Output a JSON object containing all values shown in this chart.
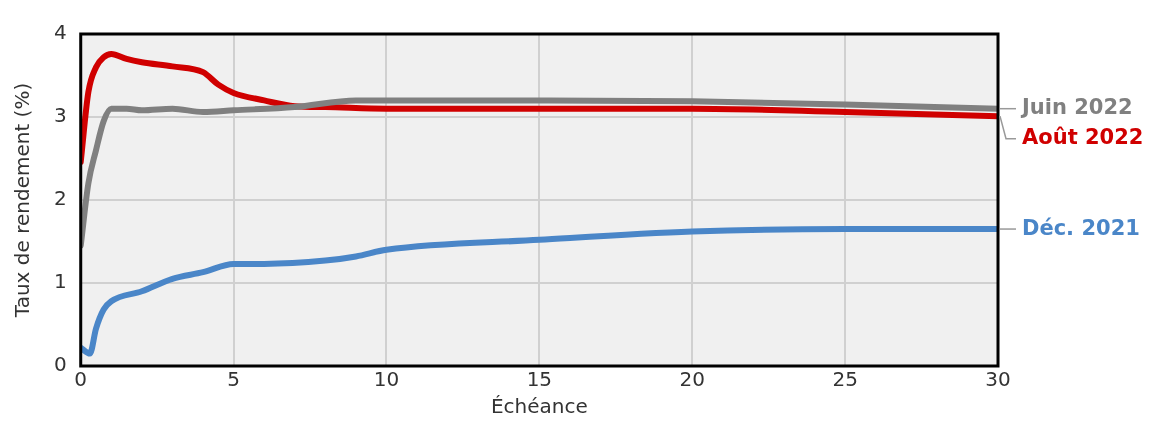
{
  "chart_data": {
    "type": "line",
    "xlabel": "Échéance",
    "ylabel": "Taux de rendement (%)",
    "xlim": [
      0,
      30
    ],
    "xticks": [
      0,
      5,
      10,
      15,
      20,
      25,
      30
    ],
    "ylim": [
      0,
      4
    ],
    "yticks": [
      0,
      1,
      2,
      3,
      4
    ],
    "grid": true,
    "legend": false,
    "marker": "none",
    "line_style": "solid",
    "series": [
      {
        "name": "Juin 2022",
        "color": "#808080",
        "x": [
          0,
          0.25,
          0.5,
          0.75,
          1,
          1.5,
          2,
          3,
          4,
          5,
          7,
          9,
          15,
          20,
          25,
          30
        ],
        "values": [
          1.45,
          2.2,
          2.6,
          2.95,
          3.1,
          3.1,
          3.08,
          3.1,
          3.06,
          3.08,
          3.12,
          3.2,
          3.2,
          3.19,
          3.15,
          3.1
        ]
      },
      {
        "name": "Août 2022",
        "color": "#d00000",
        "x": [
          0,
          0.25,
          0.5,
          0.75,
          1,
          1.5,
          2,
          3,
          4,
          4.5,
          5,
          6,
          7,
          8,
          10,
          20,
          25,
          30
        ],
        "values": [
          2.46,
          3.3,
          3.6,
          3.72,
          3.76,
          3.7,
          3.66,
          3.61,
          3.54,
          3.39,
          3.29,
          3.2,
          3.13,
          3.12,
          3.1,
          3.1,
          3.06,
          3.01
        ]
      },
      {
        "name": "Déc. 2021",
        "color": "#4a86c8",
        "x": [
          0,
          0.3,
          0.5,
          0.75,
          1,
          2,
          3,
          4,
          5,
          6,
          8,
          9,
          10,
          15,
          20,
          25,
          30
        ],
        "values": [
          0.22,
          0.15,
          0.45,
          0.68,
          0.78,
          0.9,
          1.05,
          1.13,
          1.23,
          1.23,
          1.27,
          1.32,
          1.4,
          1.52,
          1.62,
          1.65,
          1.65
        ]
      }
    ]
  }
}
